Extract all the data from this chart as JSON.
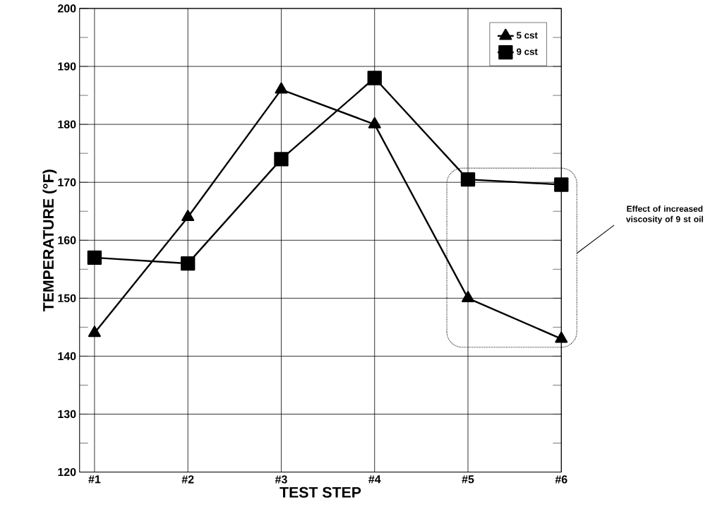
{
  "chart_data": {
    "type": "line",
    "xlabel": "TEST STEP",
    "ylabel": "TEMPERATURE (°F)",
    "categories": [
      "#1",
      "#2",
      "#3",
      "#4",
      "#5",
      "#6"
    ],
    "series": [
      {
        "name": "5 cst",
        "color": "#000000",
        "marker": "triangle",
        "values": [
          144,
          164,
          186,
          180,
          150,
          143
        ]
      },
      {
        "name": "9 cst",
        "color": "#000000",
        "marker": "square",
        "values": [
          157,
          156,
          174,
          188,
          170.5,
          169.6
        ]
      }
    ],
    "ylim": [
      120,
      200
    ],
    "yticks": [
      120,
      {
        "value": 125,
        "label": null
      },
      130,
      {
        "value": 135,
        "label": null
      },
      140,
      {
        "value": 145,
        "label": null
      },
      150,
      {
        "value": 155,
        "label": null
      },
      160,
      {
        "value": 165,
        "label": null
      },
      170,
      {
        "value": 175,
        "label": null
      },
      180,
      {
        "value": 185,
        "label": null
      },
      190,
      {
        "value": 195,
        "label": null
      },
      200
    ],
    "grid": true,
    "legend": "top right",
    "line_style": "solid",
    "annotations": [
      "Effect of increased viscosity of 9 st oil"
    ]
  }
}
